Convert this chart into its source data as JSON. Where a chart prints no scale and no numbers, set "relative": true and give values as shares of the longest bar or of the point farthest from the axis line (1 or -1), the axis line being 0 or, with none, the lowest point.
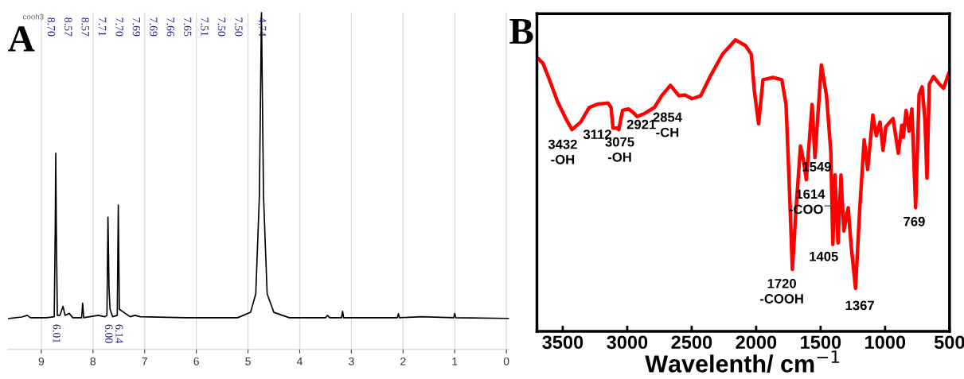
{
  "chart_data": [
    {
      "type": "line",
      "title": "A",
      "relative": true,
      "xlim": [
        9.65,
        -0.05
      ],
      "xticks": [
        9,
        8,
        7,
        6,
        5,
        4,
        3,
        2,
        1,
        0
      ],
      "tick_labels": "x",
      "grid": "x",
      "line_style": "solid",
      "series": [
        {
          "color": "#000000",
          "x": [
            9.63,
            9.38,
            9.27,
            9.21,
            8.9,
            8.75,
            8.73,
            8.72,
            8.71,
            8.69,
            8.64,
            8.58,
            8.54,
            8.46,
            8.39,
            8.22,
            8.2,
            8.18,
            7.9,
            7.77,
            7.73,
            7.71,
            7.69,
            7.67,
            7.62,
            7.53,
            7.51,
            7.49,
            7.28,
            7.19,
            7.08,
            6.2,
            5.2,
            4.95,
            4.85,
            4.78,
            4.74,
            4.7,
            4.63,
            4.5,
            4.2,
            3.5,
            3.46,
            3.42,
            3.19,
            3.17,
            3.15,
            2.11,
            2.09,
            2.07,
            1.64,
            1.02,
            1.0,
            0.98,
            -0.05
          ],
          "values": [
            0.092,
            0.096,
            0.101,
            0.094,
            0.094,
            0.097,
            0.364,
            0.582,
            0.364,
            0.101,
            0.101,
            0.128,
            0.101,
            0.107,
            0.094,
            0.094,
            0.137,
            0.094,
            0.101,
            0.097,
            0.101,
            0.392,
            0.183,
            0.119,
            0.097,
            0.101,
            0.428,
            0.119,
            0.097,
            0.101,
            0.097,
            0.094,
            0.094,
            0.11,
            0.165,
            0.455,
            1,
            0.455,
            0.165,
            0.11,
            0.094,
            0.094,
            0.101,
            0.094,
            0.094,
            0.113,
            0.094,
            0.094,
            0.106,
            0.094,
            0.097,
            0.094,
            0.107,
            0.094,
            0.092
          ]
        }
      ],
      "annotations": [
        "cooh3",
        "8.70",
        "8.57",
        "8.57",
        "7.71",
        "7.70",
        "7.69",
        "7.69",
        "7.66",
        "7.65",
        "7.51",
        "7.50",
        "7.50",
        "4.74",
        "6.01",
        "6.00",
        "6.14"
      ]
    },
    {
      "type": "line",
      "title": "B",
      "relative": true,
      "xlabel": "Wavelenth/ cm$^{−1}$",
      "xlim": [
        3700,
        500
      ],
      "xticks": [
        3500,
        3000,
        2500,
        2000,
        1500,
        1000,
        500
      ],
      "tick_labels": "x",
      "line_style": "solid",
      "series": [
        {
          "color": "#ff0000",
          "x": [
            3686,
            3653,
            3608,
            3540,
            3473,
            3428,
            3361,
            3294,
            3226,
            3148,
            3125,
            3110,
            3080,
            3065,
            3036,
            2991,
            2957,
            2923,
            2867,
            2789,
            2733,
            2665,
            2598,
            2553,
            2497,
            2430,
            2351,
            2262,
            2161,
            2082,
            2037,
            2015,
            1981,
            1947,
            1869,
            1801,
            1768,
            1745,
            1719,
            1690,
            1656,
            1633,
            1611,
            1566,
            1544,
            1494,
            1454,
            1421,
            1405,
            1388,
            1365,
            1342,
            1320,
            1286,
            1263,
            1229,
            1196,
            1162,
            1135,
            1095,
            1068,
            1039,
            1016,
            994,
            938,
            897,
            870,
            859,
            837,
            814,
            792,
            763,
            736,
            713,
            691,
            675,
            657,
            624,
            579,
            546,
            507
          ],
          "values": [
            0.934,
            0.919,
            0.869,
            0.788,
            0.727,
            0.692,
            0.718,
            0.768,
            0.78,
            0.783,
            0.768,
            0.697,
            0.697,
            0.692,
            0.758,
            0.763,
            0.752,
            0.737,
            0.747,
            0.768,
            0.808,
            0.844,
            0.808,
            0.811,
            0.798,
            0.808,
            0.879,
            0.95,
            1.0,
            0.98,
            0.95,
            0.829,
            0.712,
            0.863,
            0.871,
            0.863,
            0.778,
            0.525,
            0.212,
            0.424,
            0.636,
            0.586,
            0.52,
            0.778,
            0.596,
            0.914,
            0.808,
            0.616,
            0.298,
            0.536,
            0.303,
            0.536,
            0.344,
            0.424,
            0.293,
            0.147,
            0.424,
            0.657,
            0.555,
            0.742,
            0.671,
            0.718,
            0.621,
            0.702,
            0.73,
            0.611,
            0.707,
            0.666,
            0.758,
            0.687,
            0.763,
            0.424,
            0.813,
            0.839,
            0.727,
            0.525,
            0.848,
            0.874,
            0.848,
            0.834,
            0.884
          ]
        }
      ],
      "annotations": [
        "3432\n-OH",
        "3112",
        "3075\n-OH",
        "2921",
        "2854\n-CH",
        "1549",
        "1614\n-COO$^{−}$",
        "1405",
        "1720\n-COOH",
        "1367",
        "769"
      ]
    }
  ]
}
